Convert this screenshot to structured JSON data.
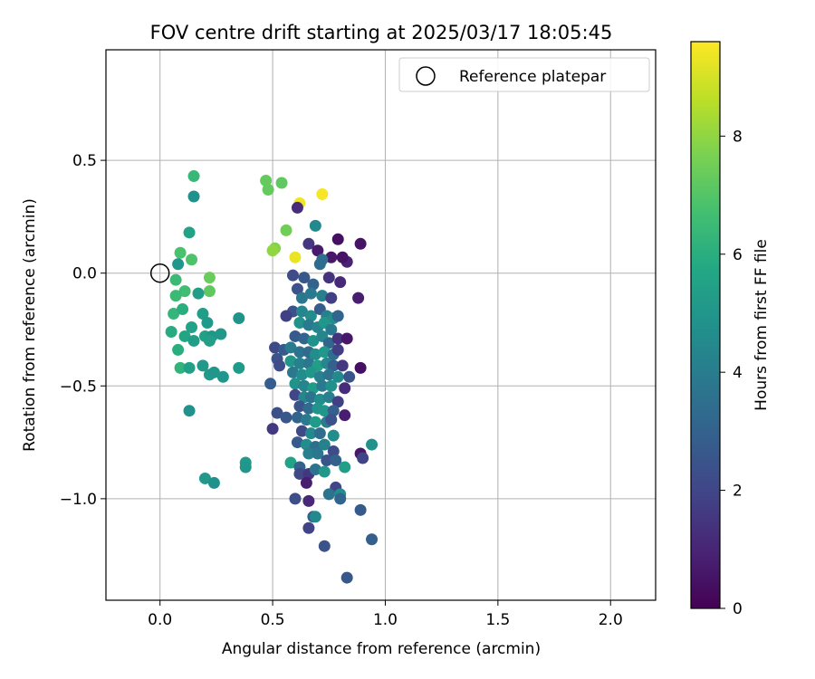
{
  "chart_data": {
    "type": "scatter",
    "title": "FOV centre drift starting at 2025/03/17 18:05:45",
    "xlabel": "Angular distance from reference (arcmin)",
    "ylabel": "Rotation from reference (arcmin)",
    "xlim": [
      -0.24,
      2.2
    ],
    "ylim": [
      -1.45,
      0.99
    ],
    "x_ticks": [
      0.0,
      0.5,
      1.0,
      1.5,
      2.0
    ],
    "x_tick_labels": [
      "0.0",
      "0.5",
      "1.0",
      "1.5",
      "2.0"
    ],
    "y_ticks": [
      0.5,
      0.0,
      -0.5,
      -1.0
    ],
    "y_tick_labels": [
      "0.5",
      "0.0",
      "−0.5",
      "−1.0"
    ],
    "grid": true,
    "legend": {
      "position": "top-right",
      "entries": [
        "Reference platepar"
      ]
    },
    "reference_point": {
      "x": 0.0,
      "y": 0.0,
      "label": "Reference platepar"
    },
    "colorbar": {
      "label": "Hours from first FF file",
      "min": 0,
      "max": 9.6,
      "ticks": [
        0,
        2,
        4,
        6,
        8
      ],
      "tick_labels": [
        "0",
        "2",
        "4",
        "6",
        "8"
      ],
      "colormap": "viridis"
    },
    "points": [
      {
        "x": 0.72,
        "y": 0.35,
        "t": 9.5
      },
      {
        "x": 0.62,
        "y": 0.31,
        "t": 9.4
      },
      {
        "x": 0.6,
        "y": 0.07,
        "t": 9.3
      },
      {
        "x": 0.47,
        "y": 0.41,
        "t": 7.3
      },
      {
        "x": 0.48,
        "y": 0.37,
        "t": 7.3
      },
      {
        "x": 0.54,
        "y": 0.4,
        "t": 7.2
      },
      {
        "x": 0.56,
        "y": 0.19,
        "t": 7.5
      },
      {
        "x": 0.51,
        "y": 0.11,
        "t": 7.8
      },
      {
        "x": 0.5,
        "y": 0.1,
        "t": 8.0
      },
      {
        "x": 0.22,
        "y": -0.02,
        "t": 7.4
      },
      {
        "x": 0.22,
        "y": -0.08,
        "t": 7.2
      },
      {
        "x": 0.15,
        "y": 0.43,
        "t": 6.4
      },
      {
        "x": 0.09,
        "y": 0.09,
        "t": 6.8
      },
      {
        "x": 0.14,
        "y": 0.06,
        "t": 6.9
      },
      {
        "x": 0.15,
        "y": 0.34,
        "t": 4.8
      },
      {
        "x": 0.13,
        "y": 0.18,
        "t": 5.5
      },
      {
        "x": 0.08,
        "y": 0.04,
        "t": 5.0
      },
      {
        "x": 0.07,
        "y": -0.03,
        "t": 6.5
      },
      {
        "x": 0.11,
        "y": -0.08,
        "t": 6.6
      },
      {
        "x": 0.07,
        "y": -0.1,
        "t": 6.5
      },
      {
        "x": 0.06,
        "y": -0.18,
        "t": 6.3
      },
      {
        "x": 0.1,
        "y": -0.16,
        "t": 6.0
      },
      {
        "x": 0.05,
        "y": -0.26,
        "t": 5.9
      },
      {
        "x": 0.11,
        "y": -0.28,
        "t": 5.6
      },
      {
        "x": 0.08,
        "y": -0.34,
        "t": 6.0
      },
      {
        "x": 0.09,
        "y": -0.42,
        "t": 6.2
      },
      {
        "x": 0.13,
        "y": -0.42,
        "t": 5.4
      },
      {
        "x": 0.14,
        "y": -0.24,
        "t": 5.5
      },
      {
        "x": 0.15,
        "y": -0.3,
        "t": 5.3
      },
      {
        "x": 0.17,
        "y": -0.09,
        "t": 5.3
      },
      {
        "x": 0.19,
        "y": -0.18,
        "t": 5.3
      },
      {
        "x": 0.2,
        "y": -0.28,
        "t": 5.4
      },
      {
        "x": 0.23,
        "y": -0.28,
        "t": 5.0
      },
      {
        "x": 0.19,
        "y": -0.41,
        "t": 5.1
      },
      {
        "x": 0.22,
        "y": -0.45,
        "t": 5.2
      },
      {
        "x": 0.24,
        "y": -0.44,
        "t": 5.0
      },
      {
        "x": 0.28,
        "y": -0.46,
        "t": 5.0
      },
      {
        "x": 0.27,
        "y": -0.27,
        "t": 5.1
      },
      {
        "x": 0.35,
        "y": -0.2,
        "t": 4.9
      },
      {
        "x": 0.35,
        "y": -0.42,
        "t": 5.2
      },
      {
        "x": 0.13,
        "y": -0.61,
        "t": 4.8
      },
      {
        "x": 0.2,
        "y": -0.91,
        "t": 5.1
      },
      {
        "x": 0.24,
        "y": -0.93,
        "t": 4.8
      },
      {
        "x": 0.38,
        "y": -0.84,
        "t": 5.2
      },
      {
        "x": 0.38,
        "y": -0.86,
        "t": 5.0
      },
      {
        "x": 0.21,
        "y": -0.22,
        "t": 5.2
      },
      {
        "x": 0.22,
        "y": -0.3,
        "t": 5.4
      },
      {
        "x": 0.61,
        "y": 0.29,
        "t": 1.2
      },
      {
        "x": 0.69,
        "y": 0.21,
        "t": 4.5
      },
      {
        "x": 0.66,
        "y": 0.13,
        "t": 1.5
      },
      {
        "x": 0.79,
        "y": 0.15,
        "t": 0.4
      },
      {
        "x": 0.89,
        "y": 0.13,
        "t": 0.5
      },
      {
        "x": 0.7,
        "y": 0.1,
        "t": 0.7
      },
      {
        "x": 0.76,
        "y": 0.07,
        "t": 0.6
      },
      {
        "x": 0.83,
        "y": 0.05,
        "t": 0.9
      },
      {
        "x": 0.81,
        "y": 0.07,
        "t": 0.5
      },
      {
        "x": 0.72,
        "y": 0.06,
        "t": 3.5
      },
      {
        "x": 0.71,
        "y": 0.04,
        "t": 3.4
      },
      {
        "x": 0.59,
        "y": -0.01,
        "t": 2.2
      },
      {
        "x": 0.64,
        "y": -0.02,
        "t": 2.6
      },
      {
        "x": 0.68,
        "y": -0.05,
        "t": 3.0
      },
      {
        "x": 0.75,
        "y": -0.02,
        "t": 1.4
      },
      {
        "x": 0.8,
        "y": -0.04,
        "t": 1.1
      },
      {
        "x": 0.88,
        "y": -0.11,
        "t": 0.8
      },
      {
        "x": 0.61,
        "y": -0.07,
        "t": 2.4
      },
      {
        "x": 0.63,
        "y": -0.11,
        "t": 3.8
      },
      {
        "x": 0.67,
        "y": -0.09,
        "t": 3.9
      },
      {
        "x": 0.72,
        "y": -0.1,
        "t": 4.2
      },
      {
        "x": 0.76,
        "y": -0.11,
        "t": 1.8
      },
      {
        "x": 0.59,
        "y": -0.17,
        "t": 2.5
      },
      {
        "x": 0.63,
        "y": -0.17,
        "t": 4.4
      },
      {
        "x": 0.67,
        "y": -0.19,
        "t": 4.6
      },
      {
        "x": 0.71,
        "y": -0.16,
        "t": 2.8
      },
      {
        "x": 0.74,
        "y": -0.19,
        "t": 4.1
      },
      {
        "x": 0.77,
        "y": -0.2,
        "t": 4.6
      },
      {
        "x": 0.79,
        "y": -0.19,
        "t": 3.1
      },
      {
        "x": 0.56,
        "y": -0.19,
        "t": 1.8
      },
      {
        "x": 0.62,
        "y": -0.22,
        "t": 4.9
      },
      {
        "x": 0.66,
        "y": -0.23,
        "t": 3.9
      },
      {
        "x": 0.7,
        "y": -0.24,
        "t": 4.3
      },
      {
        "x": 0.73,
        "y": -0.22,
        "t": 5.0
      },
      {
        "x": 0.76,
        "y": -0.25,
        "t": 3.9
      },
      {
        "x": 0.6,
        "y": -0.28,
        "t": 2.7
      },
      {
        "x": 0.64,
        "y": -0.29,
        "t": 3.1
      },
      {
        "x": 0.68,
        "y": -0.3,
        "t": 4.8
      },
      {
        "x": 0.72,
        "y": -0.28,
        "t": 4.4
      },
      {
        "x": 0.75,
        "y": -0.31,
        "t": 3.2
      },
      {
        "x": 0.79,
        "y": -0.29,
        "t": 1.4
      },
      {
        "x": 0.83,
        "y": -0.29,
        "t": 0.6
      },
      {
        "x": 0.51,
        "y": -0.33,
        "t": 2.1
      },
      {
        "x": 0.55,
        "y": -0.34,
        "t": 2.7
      },
      {
        "x": 0.58,
        "y": -0.33,
        "t": 4.0
      },
      {
        "x": 0.62,
        "y": -0.35,
        "t": 3.6
      },
      {
        "x": 0.66,
        "y": -0.35,
        "t": 3.3
      },
      {
        "x": 0.69,
        "y": -0.36,
        "t": 4.7
      },
      {
        "x": 0.73,
        "y": -0.35,
        "t": 5.1
      },
      {
        "x": 0.77,
        "y": -0.36,
        "t": 3.5
      },
      {
        "x": 0.79,
        "y": -0.34,
        "t": 1.7
      },
      {
        "x": 0.52,
        "y": -0.38,
        "t": 2.4
      },
      {
        "x": 0.58,
        "y": -0.39,
        "t": 5.0
      },
      {
        "x": 0.62,
        "y": -0.4,
        "t": 4.2
      },
      {
        "x": 0.66,
        "y": -0.4,
        "t": 3.8
      },
      {
        "x": 0.7,
        "y": -0.41,
        "t": 5.3
      },
      {
        "x": 0.74,
        "y": -0.4,
        "t": 4.4
      },
      {
        "x": 0.77,
        "y": -0.41,
        "t": 2.9
      },
      {
        "x": 0.81,
        "y": -0.41,
        "t": 1.6
      },
      {
        "x": 0.89,
        "y": -0.42,
        "t": 0.4
      },
      {
        "x": 0.53,
        "y": -0.41,
        "t": 2.2
      },
      {
        "x": 0.59,
        "y": -0.44,
        "t": 3.8
      },
      {
        "x": 0.63,
        "y": -0.45,
        "t": 4.6
      },
      {
        "x": 0.67,
        "y": -0.44,
        "t": 5.0
      },
      {
        "x": 0.71,
        "y": -0.46,
        "t": 4.1
      },
      {
        "x": 0.75,
        "y": -0.45,
        "t": 3.6
      },
      {
        "x": 0.79,
        "y": -0.46,
        "t": 4.5
      },
      {
        "x": 0.84,
        "y": -0.46,
        "t": 2.5
      },
      {
        "x": 0.49,
        "y": -0.49,
        "t": 2.8
      },
      {
        "x": 0.6,
        "y": -0.49,
        "t": 4.9
      },
      {
        "x": 0.64,
        "y": -0.5,
        "t": 4.3
      },
      {
        "x": 0.68,
        "y": -0.51,
        "t": 5.2
      },
      {
        "x": 0.72,
        "y": -0.5,
        "t": 3.9
      },
      {
        "x": 0.76,
        "y": -0.5,
        "t": 4.8
      },
      {
        "x": 0.82,
        "y": -0.51,
        "t": 1.2
      },
      {
        "x": 0.6,
        "y": -0.54,
        "t": 2.0
      },
      {
        "x": 0.64,
        "y": -0.55,
        "t": 4.4
      },
      {
        "x": 0.67,
        "y": -0.55,
        "t": 3.7
      },
      {
        "x": 0.71,
        "y": -0.56,
        "t": 4.7
      },
      {
        "x": 0.75,
        "y": -0.55,
        "t": 4.1
      },
      {
        "x": 0.79,
        "y": -0.57,
        "t": 1.8
      },
      {
        "x": 0.62,
        "y": -0.59,
        "t": 2.5
      },
      {
        "x": 0.66,
        "y": -0.6,
        "t": 3.3
      },
      {
        "x": 0.7,
        "y": -0.6,
        "t": 4.9
      },
      {
        "x": 0.73,
        "y": -0.61,
        "t": 5.0
      },
      {
        "x": 0.77,
        "y": -0.61,
        "t": 2.9
      },
      {
        "x": 0.82,
        "y": -0.63,
        "t": 0.8
      },
      {
        "x": 0.52,
        "y": -0.62,
        "t": 2.3
      },
      {
        "x": 0.56,
        "y": -0.64,
        "t": 2.6
      },
      {
        "x": 0.61,
        "y": -0.64,
        "t": 3.1
      },
      {
        "x": 0.65,
        "y": -0.65,
        "t": 3.9
      },
      {
        "x": 0.69,
        "y": -0.66,
        "t": 5.2
      },
      {
        "x": 0.74,
        "y": -0.66,
        "t": 4.0
      },
      {
        "x": 0.76,
        "y": -0.65,
        "t": 2.4
      },
      {
        "x": 0.5,
        "y": -0.69,
        "t": 1.6
      },
      {
        "x": 0.63,
        "y": -0.7,
        "t": 2.1
      },
      {
        "x": 0.67,
        "y": -0.71,
        "t": 4.5
      },
      {
        "x": 0.71,
        "y": -0.71,
        "t": 3.4
      },
      {
        "x": 0.77,
        "y": -0.72,
        "t": 4.7
      },
      {
        "x": 0.61,
        "y": -0.75,
        "t": 2.7
      },
      {
        "x": 0.65,
        "y": -0.76,
        "t": 4.6
      },
      {
        "x": 0.69,
        "y": -0.77,
        "t": 3.5
      },
      {
        "x": 0.73,
        "y": -0.76,
        "t": 4.2
      },
      {
        "x": 0.77,
        "y": -0.79,
        "t": 2.2
      },
      {
        "x": 0.58,
        "y": -0.84,
        "t": 5.5
      },
      {
        "x": 0.62,
        "y": -0.86,
        "t": 3.0
      },
      {
        "x": 0.66,
        "y": -0.8,
        "t": 4.1
      },
      {
        "x": 0.7,
        "y": -0.8,
        "t": 3.8
      },
      {
        "x": 0.74,
        "y": -0.83,
        "t": 2.5
      },
      {
        "x": 0.78,
        "y": -0.83,
        "t": 3.0
      },
      {
        "x": 0.82,
        "y": -0.86,
        "t": 5.3
      },
      {
        "x": 0.89,
        "y": -0.8,
        "t": 0.6
      },
      {
        "x": 0.9,
        "y": -0.82,
        "t": 1.9
      },
      {
        "x": 0.94,
        "y": -0.76,
        "t": 4.8
      },
      {
        "x": 0.62,
        "y": -0.89,
        "t": 2.1
      },
      {
        "x": 0.66,
        "y": -0.89,
        "t": 1.5
      },
      {
        "x": 0.69,
        "y": -0.87,
        "t": 3.6
      },
      {
        "x": 0.73,
        "y": -0.88,
        "t": 5.0
      },
      {
        "x": 0.78,
        "y": -0.95,
        "t": 2.0
      },
      {
        "x": 0.65,
        "y": -0.93,
        "t": 0.8
      },
      {
        "x": 0.6,
        "y": -1.0,
        "t": 2.3
      },
      {
        "x": 0.66,
        "y": -1.01,
        "t": 1.1
      },
      {
        "x": 0.75,
        "y": -0.98,
        "t": 3.7
      },
      {
        "x": 0.8,
        "y": -0.98,
        "t": 4.6
      },
      {
        "x": 0.8,
        "y": -1.0,
        "t": 3.1
      },
      {
        "x": 0.68,
        "y": -1.08,
        "t": 2.8
      },
      {
        "x": 0.69,
        "y": -1.08,
        "t": 4.5
      },
      {
        "x": 0.89,
        "y": -1.05,
        "t": 2.7
      },
      {
        "x": 0.66,
        "y": -1.13,
        "t": 1.9
      },
      {
        "x": 0.94,
        "y": -1.18,
        "t": 2.9
      },
      {
        "x": 0.73,
        "y": -1.21,
        "t": 2.4
      },
      {
        "x": 0.83,
        "y": -1.35,
        "t": 2.6
      }
    ]
  }
}
